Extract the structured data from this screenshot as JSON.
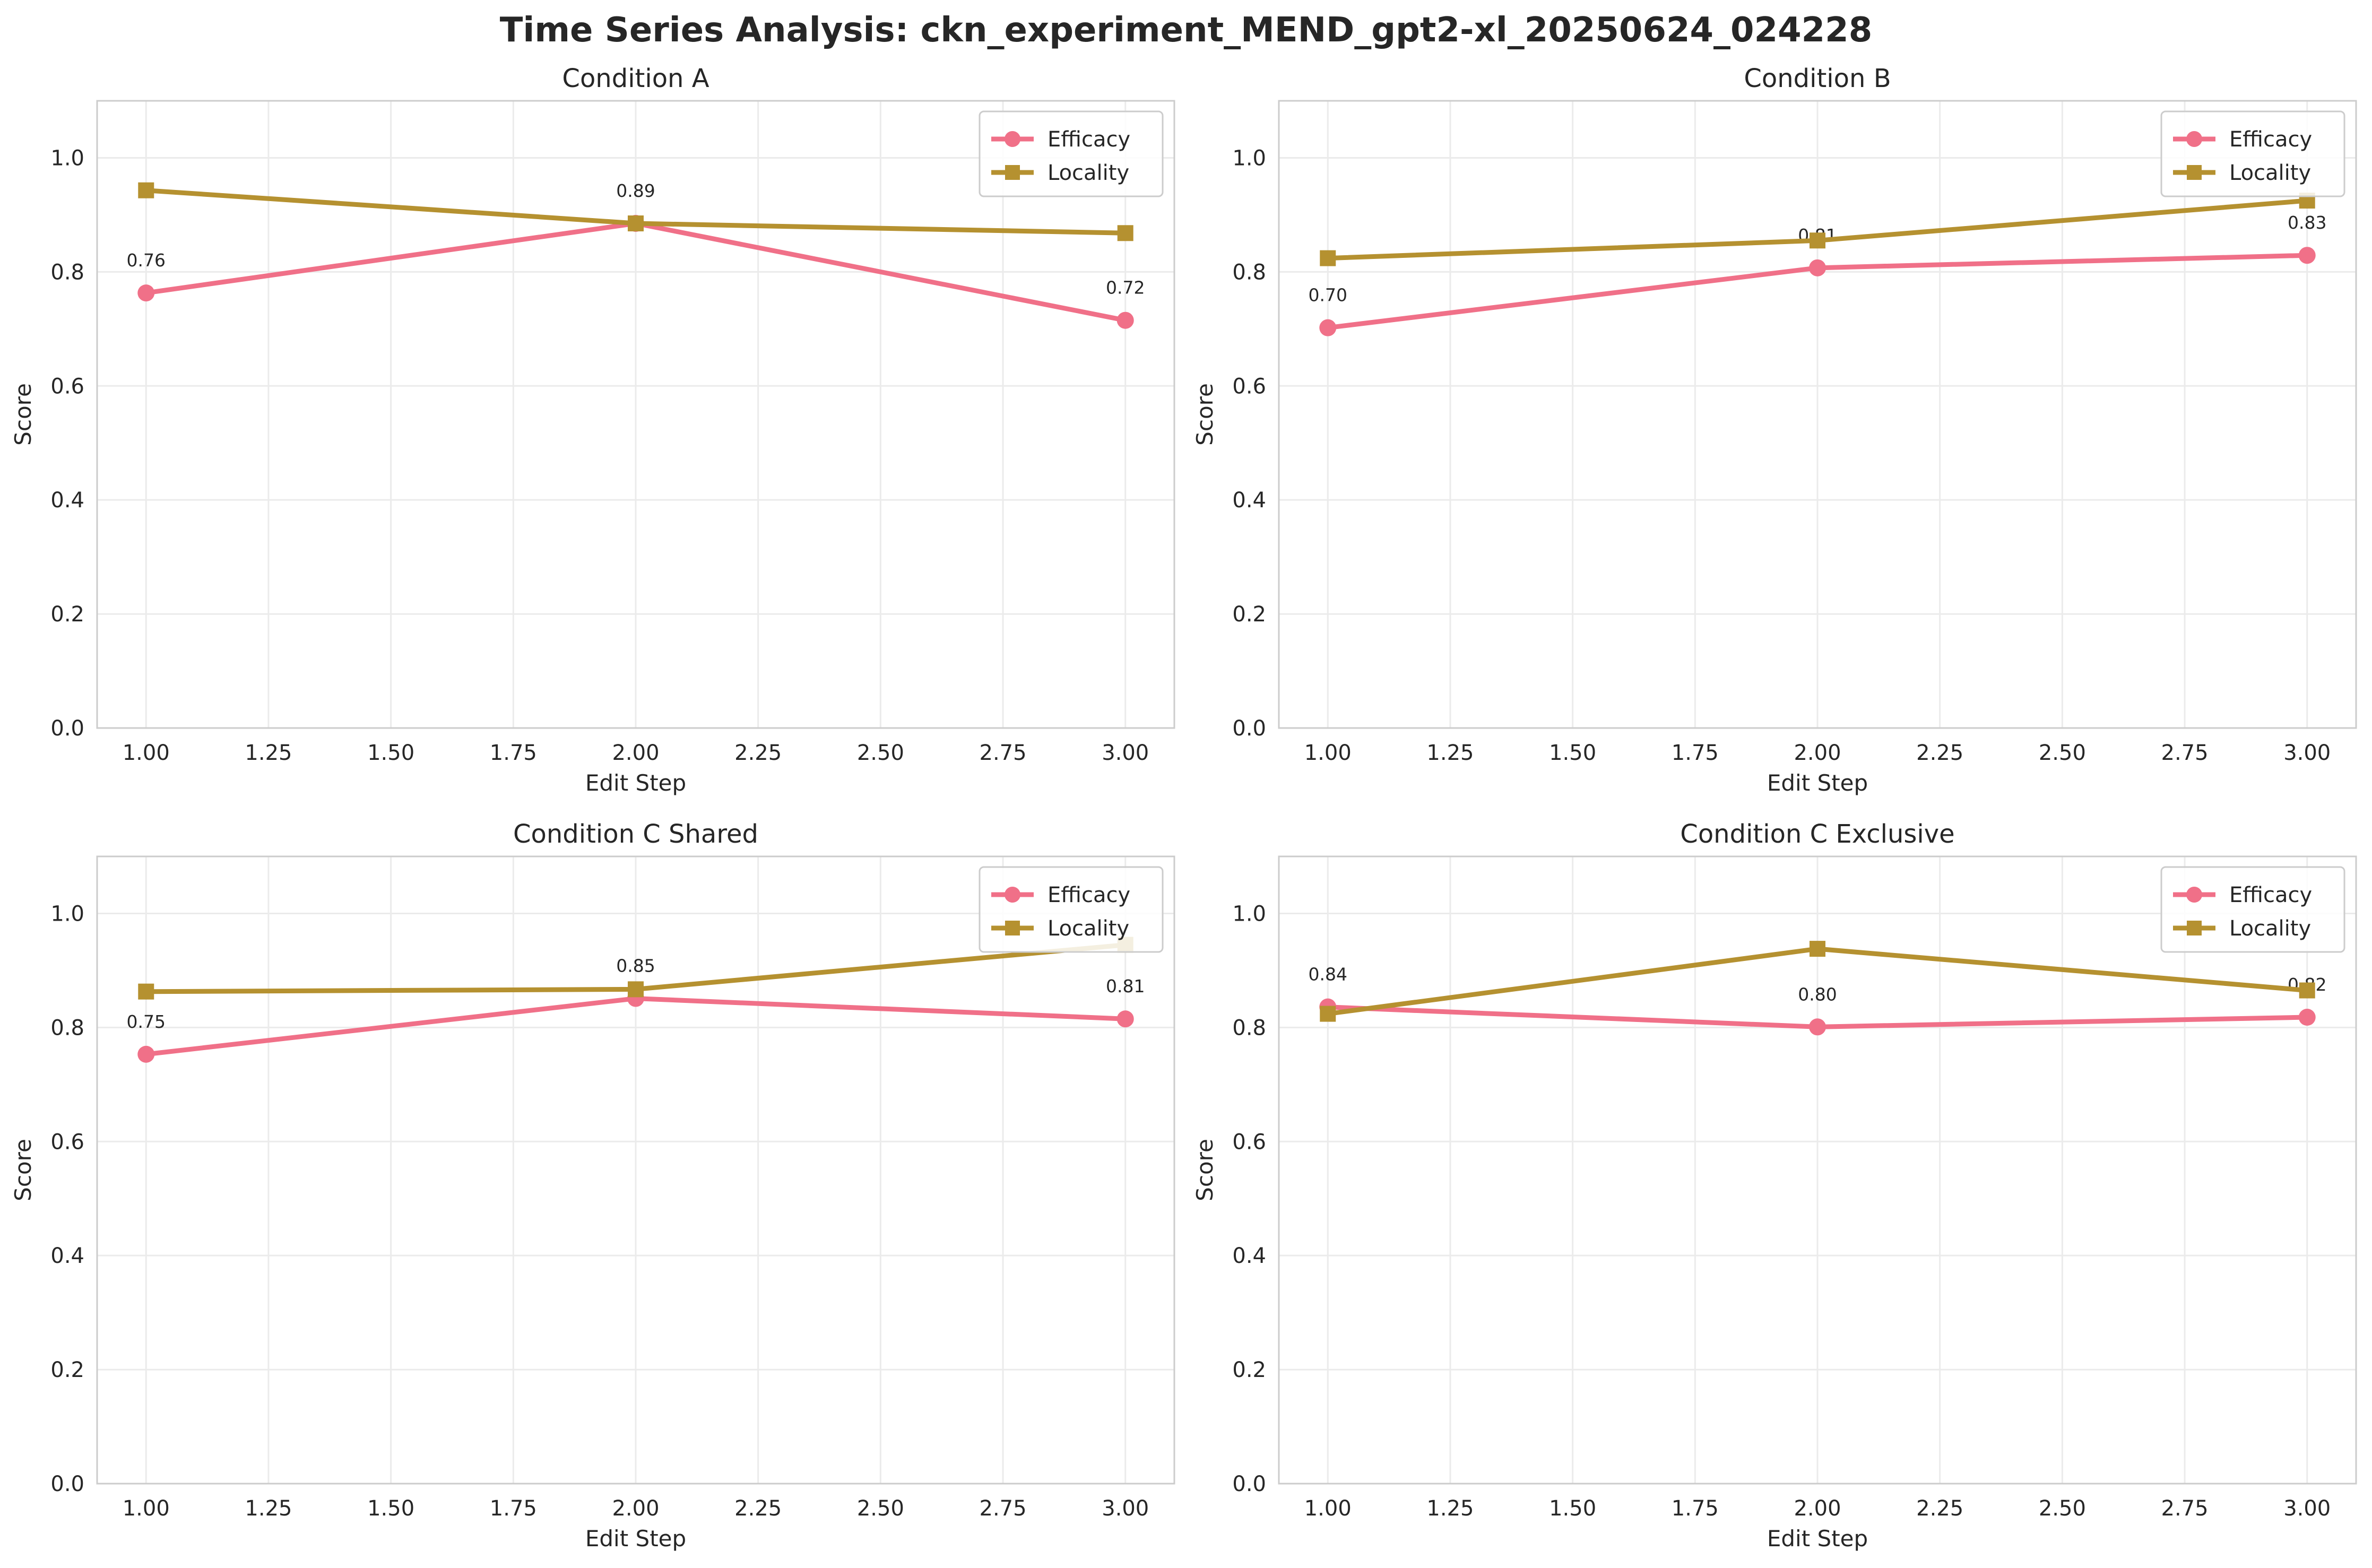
{
  "figure": {
    "title": "Time Series Analysis: ckn_experiment_MEND_gpt2-xl_20250624_024228"
  },
  "colors": {
    "efficacy": "#f07088",
    "locality": "#b59130",
    "grid": "#ebebeb",
    "frame": "#cccccc",
    "text": "#262626"
  },
  "chart_data": [
    {
      "type": "line",
      "title": "Condition A",
      "xlabel": "Edit Step",
      "ylabel": "Score",
      "xlim": [
        0.9,
        3.1
      ],
      "ylim": [
        0.0,
        1.1
      ],
      "xticks": [
        "1.00",
        "1.25",
        "1.50",
        "1.75",
        "2.00",
        "2.25",
        "2.50",
        "2.75",
        "3.00"
      ],
      "yticks": [
        "0.0",
        "0.2",
        "0.4",
        "0.6",
        "0.8",
        "1.0"
      ],
      "grid": true,
      "legend": "top-right",
      "x": [
        1,
        2,
        3
      ],
      "series": [
        {
          "name": "Efficacy",
          "marker": "circle",
          "values": [
            0.763,
            0.885,
            0.715
          ],
          "labels": [
            "0.76",
            "0.89",
            "0.72"
          ]
        },
        {
          "name": "Locality",
          "marker": "square",
          "values": [
            0.943,
            0.885,
            0.868
          ]
        }
      ]
    },
    {
      "type": "line",
      "title": "Condition B",
      "xlabel": "Edit Step",
      "ylabel": "Score",
      "xlim": [
        0.9,
        3.1
      ],
      "ylim": [
        0.0,
        1.1
      ],
      "xticks": [
        "1.00",
        "1.25",
        "1.50",
        "1.75",
        "2.00",
        "2.25",
        "2.50",
        "2.75",
        "3.00"
      ],
      "yticks": [
        "0.0",
        "0.2",
        "0.4",
        "0.6",
        "0.8",
        "1.0"
      ],
      "grid": true,
      "legend": "top-right",
      "x": [
        1,
        2,
        3
      ],
      "series": [
        {
          "name": "Efficacy",
          "marker": "circle",
          "values": [
            0.702,
            0.807,
            0.829
          ],
          "labels": [
            "0.70",
            "0.81",
            "0.83"
          ]
        },
        {
          "name": "Locality",
          "marker": "square",
          "values": [
            0.824,
            0.855,
            0.925
          ]
        }
      ]
    },
    {
      "type": "line",
      "title": "Condition C Shared",
      "xlabel": "Edit Step",
      "ylabel": "Score",
      "xlim": [
        0.9,
        3.1
      ],
      "ylim": [
        0.0,
        1.1
      ],
      "xticks": [
        "1.00",
        "1.25",
        "1.50",
        "1.75",
        "2.00",
        "2.25",
        "2.50",
        "2.75",
        "3.00"
      ],
      "yticks": [
        "0.0",
        "0.2",
        "0.4",
        "0.6",
        "0.8",
        "1.0"
      ],
      "grid": true,
      "legend": "top-right",
      "x": [
        1,
        2,
        3
      ],
      "series": [
        {
          "name": "Efficacy",
          "marker": "circle",
          "values": [
            0.753,
            0.851,
            0.815
          ],
          "labels": [
            "0.75",
            "0.85",
            "0.81"
          ]
        },
        {
          "name": "Locality",
          "marker": "square",
          "values": [
            0.863,
            0.867,
            0.945
          ]
        }
      ]
    },
    {
      "type": "line",
      "title": "Condition C Exclusive",
      "xlabel": "Edit Step",
      "ylabel": "Score",
      "xlim": [
        0.9,
        3.1
      ],
      "ylim": [
        0.0,
        1.1
      ],
      "xticks": [
        "1.00",
        "1.25",
        "1.50",
        "1.75",
        "2.00",
        "2.25",
        "2.50",
        "2.75",
        "3.00"
      ],
      "yticks": [
        "0.0",
        "0.2",
        "0.4",
        "0.6",
        "0.8",
        "1.0"
      ],
      "grid": true,
      "legend": "top-right",
      "x": [
        1,
        2,
        3
      ],
      "series": [
        {
          "name": "Efficacy",
          "marker": "circle",
          "values": [
            0.836,
            0.801,
            0.818
          ],
          "labels": [
            "0.84",
            "0.80",
            "0.82"
          ]
        },
        {
          "name": "Locality",
          "marker": "square",
          "values": [
            0.824,
            0.938,
            0.865
          ]
        }
      ]
    }
  ]
}
